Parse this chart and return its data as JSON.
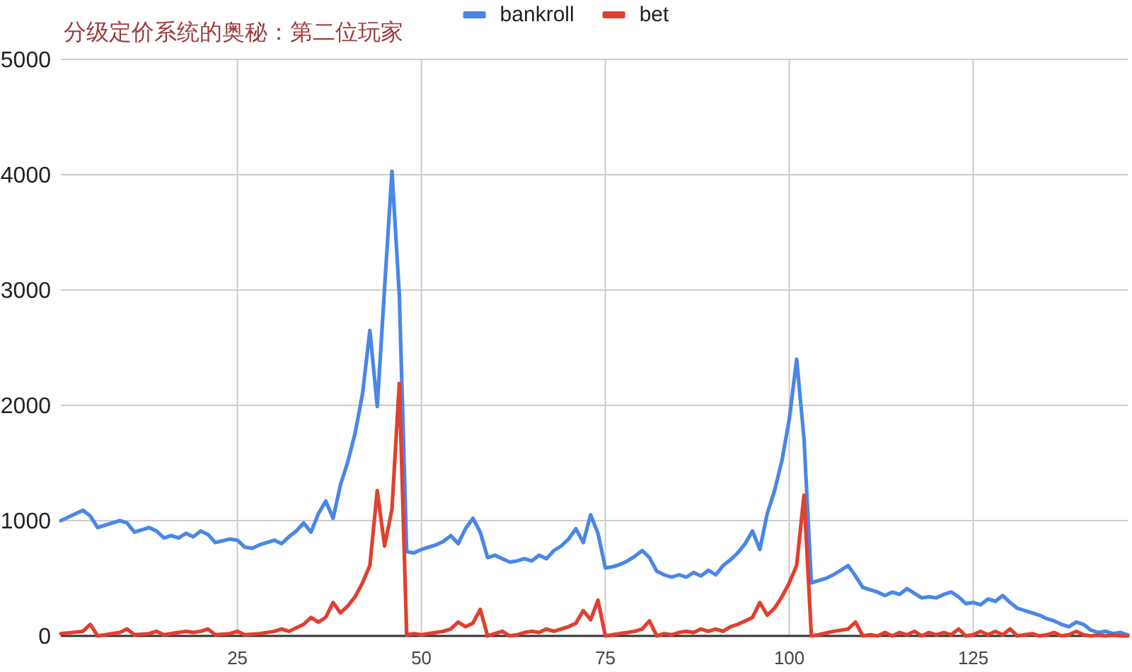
{
  "chart_data": {
    "type": "line",
    "title": "分级定价系统的奥秘：第二位玩家",
    "xlim": [
      1,
      146
    ],
    "xticks": [
      25,
      50,
      75,
      100,
      125
    ],
    "ylim": [
      0,
      5000
    ],
    "yticks": [
      0,
      1000,
      2000,
      3000,
      4000,
      5000
    ],
    "grid": true,
    "legend": "top",
    "series": [
      {
        "name": "bankroll",
        "color": "#4a86e8",
        "x": [
          1,
          4,
          5,
          6,
          9,
          10,
          11,
          13,
          14,
          15,
          16,
          17,
          18,
          19,
          20,
          21,
          22,
          24,
          25,
          26,
          27,
          28,
          29,
          30,
          31,
          32,
          33,
          34,
          35,
          36,
          37,
          38,
          39,
          40,
          41,
          42,
          43,
          44,
          45,
          46,
          47,
          48,
          49,
          50,
          52,
          53,
          54,
          55,
          56,
          57,
          58,
          59,
          60,
          61,
          62,
          63,
          64,
          65,
          66,
          67,
          68,
          69,
          70,
          71,
          72,
          73,
          74,
          75,
          76,
          77,
          78,
          79,
          80,
          81,
          82,
          83,
          84,
          85,
          86,
          87,
          88,
          89,
          90,
          91,
          92,
          93,
          94,
          95,
          96,
          97,
          98,
          99,
          100,
          101,
          102,
          103,
          104,
          105,
          106,
          107,
          108,
          109,
          110,
          111,
          112,
          113,
          114,
          115,
          116,
          117,
          118,
          119,
          120,
          121,
          122,
          123,
          124,
          125,
          126,
          127,
          128,
          129,
          130,
          131,
          132,
          133,
          134,
          135,
          136,
          137,
          138,
          139,
          140,
          141,
          142,
          143,
          144,
          145,
          146
        ],
        "values": [
          1000,
          1090,
          1040,
          940,
          1000,
          980,
          900,
          940,
          910,
          850,
          870,
          850,
          890,
          860,
          910,
          880,
          810,
          840,
          830,
          770,
          760,
          790,
          810,
          830,
          800,
          860,
          910,
          980,
          900,
          1060,
          1170,
          1020,
          1310,
          1510,
          1760,
          2100,
          2650,
          1990,
          3020,
          4030,
          2960,
          730,
          720,
          750,
          790,
          820,
          870,
          800,
          930,
          1020,
          900,
          680,
          700,
          670,
          640,
          650,
          670,
          650,
          700,
          670,
          740,
          780,
          840,
          930,
          810,
          1050,
          890,
          590,
          600,
          620,
          650,
          690,
          740,
          680,
          560,
          530,
          510,
          530,
          510,
          550,
          520,
          570,
          530,
          610,
          660,
          720,
          800,
          910,
          750,
          1060,
          1260,
          1520,
          1880,
          2400,
          1710,
          460,
          480,
          500,
          530,
          570,
          610,
          520,
          420,
          400,
          380,
          350,
          380,
          360,
          410,
          370,
          330,
          340,
          330,
          360,
          380,
          340,
          280,
          290,
          270,
          320,
          300,
          350,
          290,
          240,
          220,
          200,
          180,
          150,
          130,
          100,
          80,
          120,
          100,
          50,
          30,
          40,
          20,
          30,
          10
        ]
      },
      {
        "name": "bet",
        "color": "#e0402f",
        "x": [
          1,
          4,
          5,
          6,
          9,
          10,
          11,
          13,
          14,
          15,
          17,
          18,
          19,
          20,
          21,
          22,
          24,
          25,
          26,
          28,
          30,
          31,
          32,
          34,
          35,
          36,
          37,
          38,
          39,
          40,
          41,
          42,
          43,
          44,
          45,
          46,
          47,
          48,
          49,
          50,
          52,
          53,
          54,
          55,
          56,
          57,
          58,
          59,
          60,
          61,
          62,
          63,
          64,
          65,
          66,
          67,
          68,
          69,
          70,
          71,
          72,
          73,
          74,
          75,
          76,
          78,
          79,
          80,
          81,
          82,
          83,
          84,
          85,
          86,
          87,
          88,
          89,
          90,
          91,
          92,
          93,
          94,
          95,
          96,
          97,
          98,
          99,
          100,
          101,
          102,
          103,
          104,
          106,
          108,
          109,
          110,
          111,
          112,
          113,
          114,
          115,
          116,
          117,
          118,
          119,
          120,
          121,
          122,
          123,
          124,
          125,
          126,
          127,
          128,
          129,
          130,
          131,
          132,
          133,
          134,
          135,
          136,
          137,
          138,
          139,
          140,
          141,
          142,
          143,
          144,
          145,
          146
        ],
        "values": [
          20,
          40,
          100,
          0,
          30,
          60,
          10,
          20,
          40,
          10,
          30,
          40,
          30,
          40,
          60,
          10,
          20,
          40,
          10,
          20,
          40,
          60,
          40,
          100,
          160,
          120,
          160,
          290,
          200,
          260,
          340,
          460,
          610,
          1260,
          780,
          1100,
          2190,
          10,
          20,
          10,
          30,
          40,
          60,
          120,
          80,
          110,
          230,
          0,
          20,
          40,
          0,
          10,
          30,
          40,
          30,
          60,
          40,
          60,
          80,
          110,
          220,
          140,
          310,
          0,
          10,
          30,
          40,
          60,
          130,
          0,
          20,
          10,
          30,
          40,
          30,
          60,
          40,
          60,
          40,
          80,
          100,
          130,
          160,
          290,
          180,
          240,
          340,
          460,
          610,
          1220,
          0,
          10,
          40,
          60,
          120,
          0,
          10,
          0,
          30,
          0,
          30,
          10,
          40,
          0,
          30,
          10,
          30,
          10,
          60,
          0,
          10,
          40,
          10,
          40,
          10,
          60,
          0,
          10,
          20,
          0,
          10,
          30,
          0,
          10,
          40,
          10,
          0,
          10,
          0,
          10,
          0,
          0
        ]
      }
    ]
  }
}
